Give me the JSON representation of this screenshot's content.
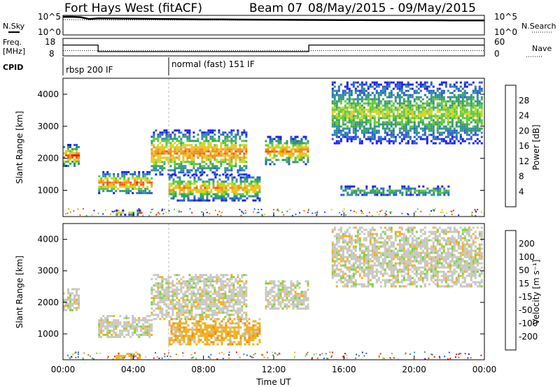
{
  "header": {
    "radar": "Fort Hays West (fitACF)",
    "beam": "Beam 07",
    "date_range": "08/May/2015 - 09/May/2015"
  },
  "labels": {
    "nsky": "N.Sky",
    "nsearch": "N.Search",
    "freq": "Freq.",
    "freq_unit": "[MHz]",
    "nave": "Nave",
    "cpid": "CPID"
  },
  "chart_data": [
    {
      "type": "line",
      "panel": "noise",
      "series": [
        {
          "name": "N.Sky",
          "x": [
            0,
            0.5,
            1,
            1.5,
            2,
            3,
            4,
            5,
            6,
            7,
            8,
            9,
            10,
            11,
            12,
            13,
            14,
            15,
            16,
            17,
            18,
            19,
            20,
            21,
            22,
            23,
            24
          ],
          "values": [
            150000,
            160000,
            120000,
            30000,
            50000,
            45000,
            40000,
            35000,
            30000,
            28000,
            25000,
            24000,
            22000,
            20000,
            19000,
            18000,
            17000,
            16000,
            15000,
            15000,
            14000,
            14000,
            13000,
            13000,
            12000,
            12000,
            11000
          ]
        },
        {
          "name": "N.Search",
          "x": [
            0,
            2,
            4,
            6,
            8,
            10,
            12,
            14,
            16,
            18,
            20,
            22,
            24
          ],
          "values": [
            20000,
            18000,
            17000,
            16000,
            15000,
            14000,
            13000,
            11000,
            10000,
            9500,
            9000,
            8500,
            8000
          ]
        }
      ],
      "ylabel": "N.Sky",
      "yticks": [
        "10^5",
        "10^0"
      ],
      "y2ticks": [
        "10^5",
        "10^0"
      ]
    },
    {
      "type": "line",
      "panel": "frequency",
      "series": [
        {
          "name": "Freq.",
          "x": [
            0,
            2,
            2,
            14,
            14,
            24
          ],
          "values": [
            14.6,
            14.6,
            10.3,
            10.3,
            14.6,
            14.6
          ]
        },
        {
          "name": "Nave",
          "x": [
            0,
            6,
            12,
            18,
            24
          ],
          "values": [
            18,
            18,
            18,
            18,
            18
          ]
        }
      ],
      "ylabel": "Freq. [MHz]",
      "yticks": [
        18,
        8
      ],
      "y2ticks": [
        60,
        0
      ]
    },
    {
      "type": "table",
      "panel": "cpid",
      "segments": [
        {
          "start": 0,
          "end": 6,
          "label": "rbsp 200 IF"
        },
        {
          "start": 6,
          "end": 24,
          "label": "normal (fast) 151 IF"
        }
      ]
    },
    {
      "type": "heatmap",
      "panel": "power",
      "ylabel": "Slant Range [km]",
      "ylim": [
        180,
        4500
      ],
      "yticks": [
        1000,
        2000,
        3000,
        4000
      ],
      "colorbar_label": "Power [dB]",
      "colorbar_ticks": [
        4,
        8,
        12,
        16,
        20,
        24,
        28
      ],
      "clim": [
        0,
        32
      ],
      "colors": [
        "#1e1ef0",
        "#2a5cd8",
        "#2f8c9c",
        "#3aa060",
        "#5ec83c",
        "#c8d828",
        "#f0c020",
        "#f09018",
        "#f05a14",
        "#e81e10"
      ],
      "features": [
        {
          "kind": "band",
          "t0": 0.0,
          "t1": 0.9,
          "r0": 1750,
          "r1": 2450,
          "peak": 28
        },
        {
          "kind": "band",
          "t0": 2.0,
          "t1": 5.0,
          "r0": 900,
          "r1": 1600,
          "peak": 26
        },
        {
          "kind": "band",
          "t0": 5.0,
          "t1": 10.5,
          "r0": 1500,
          "r1": 2900,
          "peak": 24
        },
        {
          "kind": "band",
          "t0": 6.0,
          "t1": 11.2,
          "r0": 700,
          "r1": 1500,
          "peak": 22
        },
        {
          "kind": "band",
          "t0": 11.5,
          "t1": 14.0,
          "r0": 1800,
          "r1": 2700,
          "peak": 24
        },
        {
          "kind": "band",
          "t0": 15.3,
          "t1": 23.8,
          "r0": 2500,
          "r1": 4400,
          "peak": 16
        },
        {
          "kind": "band",
          "t0": 15.8,
          "t1": 22.0,
          "r0": 850,
          "r1": 1150,
          "peak": 12
        },
        {
          "kind": "band",
          "t0": 3.0,
          "t1": 4.4,
          "r0": 250,
          "r1": 400,
          "peak": 16
        }
      ]
    },
    {
      "type": "heatmap",
      "panel": "velocity",
      "ylabel": "Slant Range [km]",
      "ylim": [
        180,
        4500
      ],
      "yticks": [
        1000,
        2000,
        3000,
        4000
      ],
      "xlabel": "Time UT",
      "xticks": [
        "00:00",
        "04:00",
        "08:00",
        "12:00",
        "16:00",
        "20:00",
        "00:00"
      ],
      "colorbar_label": "Velocity [m s⁻¹]",
      "colorbar_ticks": [
        200,
        100,
        50,
        15,
        -15,
        -50,
        -100,
        -200
      ],
      "colors": [
        "#1e2ea0",
        "#2a5cd8",
        "#2f8c9c",
        "#3aa050",
        "#7cd23c",
        "#c8c8c0",
        "#f0b020",
        "#f08818",
        "#f05014",
        "#e81e10"
      ],
      "features": [
        {
          "kind": "band",
          "t0": 0.0,
          "t1": 0.9,
          "r0": 1750,
          "r1": 2450,
          "v": 0
        },
        {
          "kind": "band",
          "t0": 2.0,
          "t1": 5.0,
          "r0": 900,
          "r1": 1600,
          "v": 0
        },
        {
          "kind": "band",
          "t0": 5.0,
          "t1": 10.5,
          "r0": 1500,
          "r1": 2900,
          "v": 0
        },
        {
          "kind": "band",
          "t0": 6.0,
          "t1": 11.2,
          "r0": 700,
          "r1": 1500,
          "v": -50
        },
        {
          "kind": "band",
          "t0": 11.5,
          "t1": 14.0,
          "r0": 1800,
          "r1": 2700,
          "v": 30
        },
        {
          "kind": "band",
          "t0": 15.3,
          "t1": 23.8,
          "r0": 2500,
          "r1": 4400,
          "v": 0
        },
        {
          "kind": "band",
          "t0": 3.0,
          "t1": 4.4,
          "r0": 250,
          "r1": 400,
          "v": -60
        }
      ]
    }
  ]
}
